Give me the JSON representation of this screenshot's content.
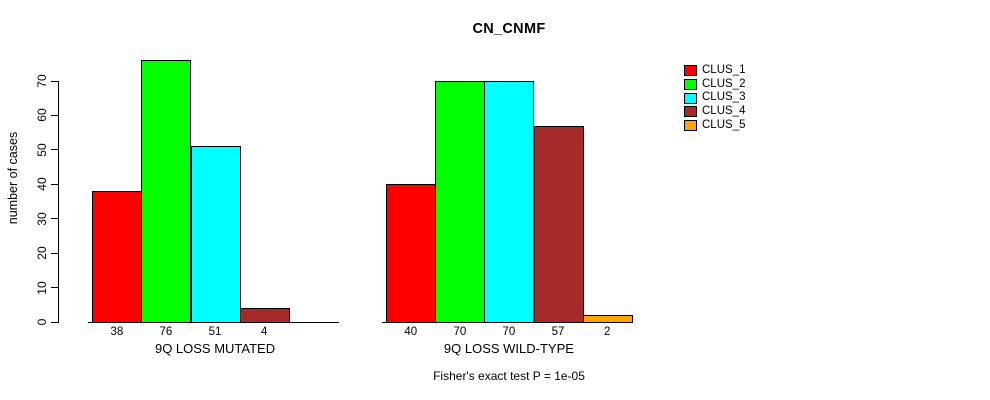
{
  "figure": {
    "title": "CN_CNMF",
    "y_axis_label": "number of cases",
    "caption": "Fisher's exact test P = 1e-05",
    "background_color": "#FFFFFF",
    "axis_color": "#000000",
    "text_color": "#000000"
  },
  "legend": {
    "items": [
      {
        "label": "CLUS_1",
        "color": "#FF0000"
      },
      {
        "label": "CLUS_2",
        "color": "#00FF00"
      },
      {
        "label": "CLUS_3",
        "color": "#00FFFF"
      },
      {
        "label": "CLUS_4",
        "color": "#A52A2A"
      },
      {
        "label": "CLUS_5",
        "color": "#FFA500"
      }
    ]
  },
  "chart_data": {
    "type": "bar",
    "title": "CN_CNMF",
    "ylabel": "number of cases",
    "ylim": [
      0,
      70
    ],
    "yticks": [
      0,
      10,
      20,
      30,
      40,
      50,
      60,
      70
    ],
    "grid": false,
    "legend_position": "right",
    "legend_entries": [
      "CLUS_1",
      "CLUS_2",
      "CLUS_3",
      "CLUS_4",
      "CLUS_5"
    ],
    "series_colors": [
      "#FF0000",
      "#00FF00",
      "#00FFFF",
      "#A52A2A",
      "#FFA500"
    ],
    "groups": [
      {
        "label": "9Q LOSS MUTATED",
        "values": [
          38,
          76,
          51,
          4,
          null
        ]
      },
      {
        "label": "9Q LOSS WILD-TYPE",
        "values": [
          40,
          70,
          70,
          57,
          2
        ]
      }
    ],
    "value_labels_shown": true,
    "footnote": "Fisher's exact test P = 1e-05"
  }
}
